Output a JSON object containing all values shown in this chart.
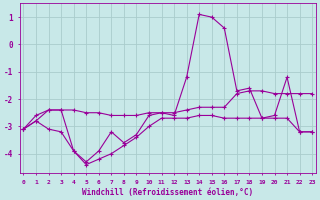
{
  "xlabel": "Windchill (Refroidissement éolien,°C)",
  "background_color": "#c8e8e8",
  "grid_color": "#aacccc",
  "line_color": "#990099",
  "x": [
    0,
    1,
    2,
    3,
    4,
    5,
    6,
    7,
    8,
    9,
    10,
    11,
    12,
    13,
    14,
    15,
    16,
    17,
    18,
    19,
    20,
    21,
    22,
    23
  ],
  "line1": [
    -3.1,
    -2.8,
    -2.4,
    -2.4,
    -3.9,
    -4.3,
    -3.9,
    -3.2,
    -3.6,
    -3.3,
    -2.6,
    -2.5,
    -2.6,
    -1.2,
    1.1,
    1.0,
    0.6,
    -1.7,
    -1.6,
    -2.7,
    -2.6,
    -1.2,
    -3.2,
    -3.2
  ],
  "line2": [
    -3.1,
    -2.6,
    -2.4,
    -2.4,
    -2.4,
    -2.5,
    -2.5,
    -2.6,
    -2.6,
    -2.6,
    -2.5,
    -2.5,
    -2.5,
    -2.4,
    -2.3,
    -2.3,
    -2.3,
    -1.8,
    -1.7,
    -1.7,
    -1.8,
    -1.8,
    -1.8,
    -1.8
  ],
  "line3": [
    -3.1,
    -2.8,
    -3.1,
    -3.2,
    -3.9,
    -4.4,
    -4.2,
    -4.0,
    -3.7,
    -3.4,
    -3.0,
    -2.7,
    -2.7,
    -2.7,
    -2.6,
    -2.6,
    -2.7,
    -2.7,
    -2.7,
    -2.7,
    -2.7,
    -2.7,
    -3.2,
    -3.2
  ],
  "ylim": [
    -4.7,
    1.5
  ],
  "yticks": [
    -4,
    -3,
    -2,
    -1,
    0,
    1
  ],
  "xlim": [
    -0.3,
    23.3
  ]
}
